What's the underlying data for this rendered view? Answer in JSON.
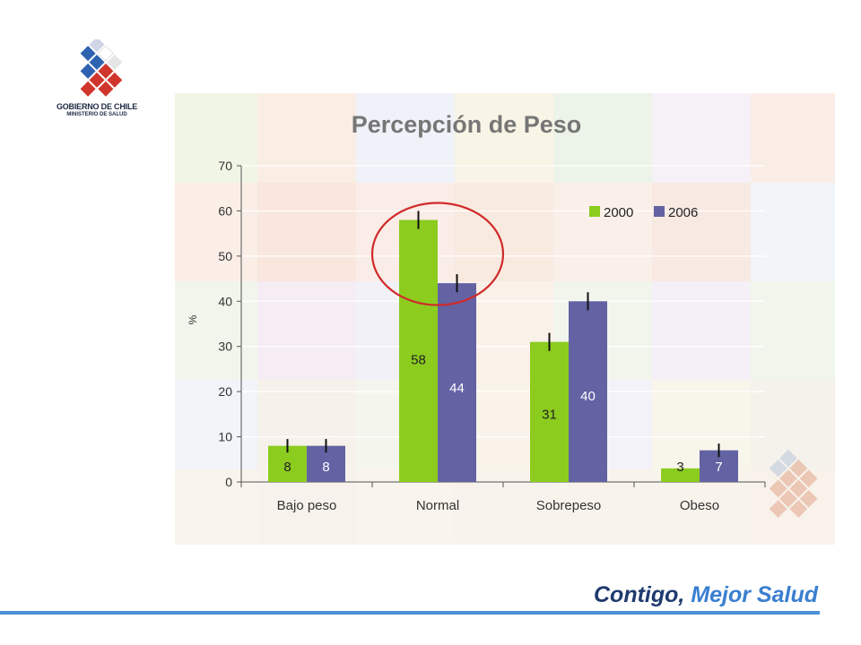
{
  "logo": {
    "line1": "GOBIERNO DE CHILE",
    "line2": "MINISTERIO DE SALUD",
    "icon": "government-diamond-logo",
    "colors": {
      "blue": "#2e63b0",
      "red": "#d0362b",
      "white": "#ffffff"
    }
  },
  "footer": {
    "text_part1": "Contigo,",
    "text_part2": "Mejor Salud",
    "colors": {
      "part1": "#1f3a6e",
      "part2": "#3a7fd0",
      "line": "#4e8fd6"
    }
  },
  "chart_data": {
    "type": "bar",
    "title": "Percepción de Peso",
    "ylabel": "%",
    "xlabel": "",
    "ylim": [
      0,
      70
    ],
    "yticks": [
      0,
      10,
      20,
      30,
      40,
      50,
      60,
      70
    ],
    "categories": [
      "Bajo peso",
      "Normal",
      "Sobrepeso",
      "Obeso"
    ],
    "series": [
      {
        "name": "2000",
        "color": "#8ccc1f",
        "values": [
          8,
          58,
          31,
          3
        ],
        "labels": [
          "8",
          "58",
          "31",
          "3"
        ],
        "errors": [
          1.5,
          2,
          2,
          0
        ]
      },
      {
        "name": "2006",
        "color": "#6362a3",
        "values": [
          8,
          44,
          40,
          7
        ],
        "labels": [
          "8",
          "44",
          "40",
          "7"
        ],
        "errors": [
          1.5,
          2,
          2,
          1.5
        ]
      }
    ],
    "legend_position": "top-right",
    "grid": true,
    "highlight": {
      "category": "Normal",
      "shape": "ellipse",
      "color": "#d02a2a"
    }
  }
}
